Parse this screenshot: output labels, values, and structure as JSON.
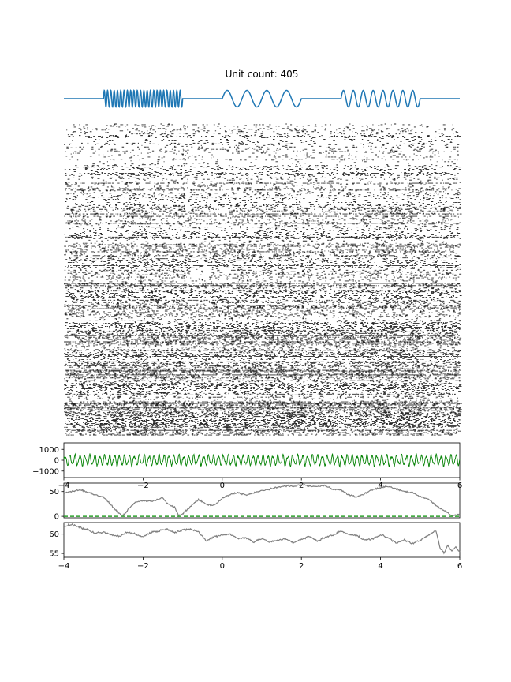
{
  "title": "Unit count: 405",
  "colors": {
    "stimulus": "#1f77b4",
    "raster": "#000000",
    "lfp": "#008000",
    "trace": "#808080",
    "baseline": "#2ca02c",
    "axis": "#000000"
  },
  "chart_data": [
    {
      "type": "line",
      "name": "stimulus",
      "title": "Unit count: 405",
      "x_range": [
        -4,
        6
      ],
      "y_range": [
        -1.3,
        1.3
      ],
      "axes_visible": false,
      "segments": [
        {
          "x_start": -4.0,
          "x_end": -3.0,
          "kind": "flat"
        },
        {
          "x_start": -3.0,
          "x_end": -1.0,
          "kind": "sine",
          "frequency_hz": 12,
          "amplitude": 1
        },
        {
          "x_start": -1.0,
          "x_end": 0.0,
          "kind": "flat"
        },
        {
          "x_start": 0.0,
          "x_end": 2.0,
          "kind": "sine",
          "frequency_hz": 2,
          "amplitude": 1
        },
        {
          "x_start": 2.0,
          "x_end": 3.0,
          "kind": "flat"
        },
        {
          "x_start": 3.0,
          "x_end": 5.0,
          "kind": "sine",
          "frequency_hz": 4,
          "amplitude": 1
        },
        {
          "x_start": 5.0,
          "x_end": 6.0,
          "kind": "flat"
        }
      ]
    },
    {
      "type": "scatter",
      "name": "spike-raster",
      "x_range": [
        -4,
        6
      ],
      "unit_count": 405,
      "groups": 8,
      "axes_visible": false,
      "stimulus_epochs": [
        [
          -3,
          -1
        ],
        [
          0,
          2
        ],
        [
          3,
          5
        ]
      ]
    },
    {
      "type": "line",
      "name": "lfp",
      "x_range": [
        -4,
        6
      ],
      "ylim": [
        -1600,
        1600
      ],
      "yticks": [
        1000,
        0,
        -1000
      ],
      "xticks": [
        -4,
        -2,
        0,
        2,
        4,
        6
      ],
      "ytick_labels": [
        "1000",
        "0",
        "−1000"
      ],
      "xtick_labels": [
        "−4",
        "−2",
        "0",
        "2",
        "4",
        "6"
      ],
      "amplitude_approx": 420,
      "frequency_hz_approx": 8
    },
    {
      "type": "line",
      "name": "trace-2",
      "x_range": [
        -4,
        6
      ],
      "ylim": [
        -3,
        67
      ],
      "yticks": [
        50,
        0
      ],
      "ytick_labels": [
        "50",
        "0"
      ],
      "baseline": 0,
      "baseline_style": "dashed",
      "points": [
        [
          -4.0,
          47
        ],
        [
          -3.8,
          50
        ],
        [
          -3.6,
          54
        ],
        [
          -3.4,
          49
        ],
        [
          -3.2,
          43
        ],
        [
          -3.0,
          39
        ],
        [
          -2.8,
          22
        ],
        [
          -2.6,
          6
        ],
        [
          -2.5,
          1
        ],
        [
          -2.4,
          12
        ],
        [
          -2.2,
          28
        ],
        [
          -2.0,
          32
        ],
        [
          -1.8,
          30
        ],
        [
          -1.6,
          35
        ],
        [
          -1.5,
          38
        ],
        [
          -1.4,
          26
        ],
        [
          -1.2,
          18
        ],
        [
          -1.1,
          1
        ],
        [
          -1.0,
          5
        ],
        [
          -0.8,
          20
        ],
        [
          -0.6,
          34
        ],
        [
          -0.4,
          24
        ],
        [
          -0.2,
          22
        ],
        [
          0.0,
          36
        ],
        [
          0.2,
          44
        ],
        [
          0.4,
          48
        ],
        [
          0.6,
          43
        ],
        [
          0.8,
          47
        ],
        [
          1.0,
          52
        ],
        [
          1.2,
          55
        ],
        [
          1.4,
          58
        ],
        [
          1.6,
          62
        ],
        [
          1.8,
          60
        ],
        [
          2.0,
          64
        ],
        [
          2.2,
          61
        ],
        [
          2.4,
          60
        ],
        [
          2.6,
          62
        ],
        [
          2.8,
          55
        ],
        [
          3.0,
          53
        ],
        [
          3.2,
          43
        ],
        [
          3.4,
          39
        ],
        [
          3.6,
          46
        ],
        [
          3.8,
          54
        ],
        [
          4.0,
          58
        ],
        [
          4.2,
          60
        ],
        [
          4.4,
          55
        ],
        [
          4.6,
          50
        ],
        [
          4.8,
          48
        ],
        [
          5.0,
          40
        ],
        [
          5.2,
          35
        ],
        [
          5.4,
          22
        ],
        [
          5.6,
          12
        ],
        [
          5.8,
          2
        ],
        [
          6.0,
          4
        ]
      ]
    },
    {
      "type": "line",
      "name": "trace-3",
      "x_range": [
        -4,
        6
      ],
      "xticks": [
        -4,
        -2,
        0,
        2,
        4,
        6
      ],
      "xtick_labels": [
        "−4",
        "−2",
        "0",
        "2",
        "4",
        "6"
      ],
      "ylim": [
        54,
        63
      ],
      "yticks": [
        60,
        55
      ],
      "ytick_labels": [
        "60",
        "55"
      ],
      "points": [
        [
          -4.0,
          62.0
        ],
        [
          -3.8,
          62.5
        ],
        [
          -3.6,
          61.8
        ],
        [
          -3.4,
          61.0
        ],
        [
          -3.2,
          60.2
        ],
        [
          -3.0,
          60.5
        ],
        [
          -2.8,
          59.8
        ],
        [
          -2.6,
          59.4
        ],
        [
          -2.4,
          60.6
        ],
        [
          -2.2,
          60.0
        ],
        [
          -2.0,
          59.3
        ],
        [
          -1.8,
          60.5
        ],
        [
          -1.6,
          60.8
        ],
        [
          -1.4,
          61.4
        ],
        [
          -1.2,
          60.4
        ],
        [
          -1.0,
          61.0
        ],
        [
          -0.8,
          61.3
        ],
        [
          -0.6,
          60.6
        ],
        [
          -0.4,
          58.2
        ],
        [
          -0.2,
          59.4
        ],
        [
          0.0,
          59.8
        ],
        [
          0.2,
          60.0
        ],
        [
          0.4,
          58.8
        ],
        [
          0.6,
          59.2
        ],
        [
          0.8,
          57.9
        ],
        [
          1.0,
          58.9
        ],
        [
          1.2,
          57.9
        ],
        [
          1.4,
          58.4
        ],
        [
          1.6,
          58.8
        ],
        [
          1.8,
          57.8
        ],
        [
          2.0,
          58.6
        ],
        [
          2.2,
          59.4
        ],
        [
          2.4,
          58.2
        ],
        [
          2.6,
          59.2
        ],
        [
          2.8,
          59.7
        ],
        [
          3.0,
          60.8
        ],
        [
          3.2,
          60.0
        ],
        [
          3.4,
          59.6
        ],
        [
          3.6,
          58.4
        ],
        [
          3.8,
          58.8
        ],
        [
          4.0,
          59.8
        ],
        [
          4.2,
          59.0
        ],
        [
          4.4,
          57.7
        ],
        [
          4.6,
          58.6
        ],
        [
          4.8,
          57.5
        ],
        [
          5.0,
          58.4
        ],
        [
          5.2,
          59.6
        ],
        [
          5.4,
          61.0
        ],
        [
          5.5,
          56.4
        ],
        [
          5.6,
          55.2
        ],
        [
          5.7,
          57.0
        ],
        [
          5.8,
          55.5
        ],
        [
          5.9,
          56.6
        ],
        [
          6.0,
          55.4
        ]
      ]
    }
  ]
}
